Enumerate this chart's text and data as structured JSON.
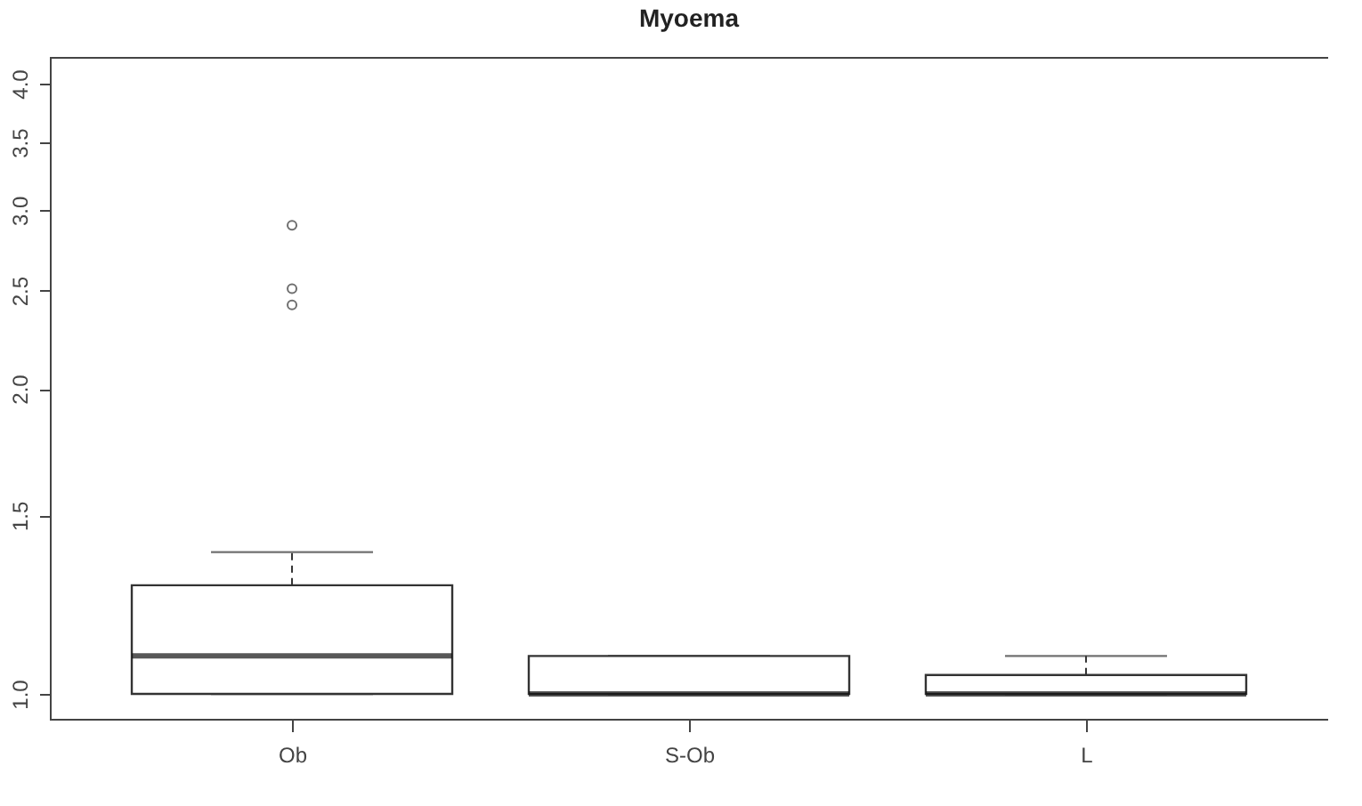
{
  "chart_data": {
    "type": "box",
    "title": "Myoema",
    "categories": [
      "Ob",
      "S-Ob",
      "L"
    ],
    "boxes": [
      {
        "low": 1.0,
        "q1": 1.0,
        "median": 1.09,
        "q3": 1.28,
        "high": 1.38,
        "outliers": [
          2.9,
          2.51,
          2.42
        ]
      },
      {
        "low": 1.0,
        "q1": 1.0,
        "median": 1.0,
        "q3": 1.09,
        "high": 1.09
      },
      {
        "low": 1.0,
        "q1": 1.0,
        "median": 1.0,
        "q3": 1.044,
        "high": 1.09
      }
    ],
    "log": "y",
    "ylim": [
      0.945,
      4.25
    ],
    "yticks": [
      {
        "value": 1,
        "label": "1.0"
      },
      {
        "value": 1.5,
        "label": "1.5"
      },
      {
        "value": 2,
        "label": "2.0"
      },
      {
        "value": 2.5,
        "label": "2.5"
      },
      {
        "value": 3,
        "label": "3.0"
      },
      {
        "value": 3.5,
        "label": "3.5"
      },
      {
        "value": 4,
        "label": "4.0"
      }
    ]
  }
}
